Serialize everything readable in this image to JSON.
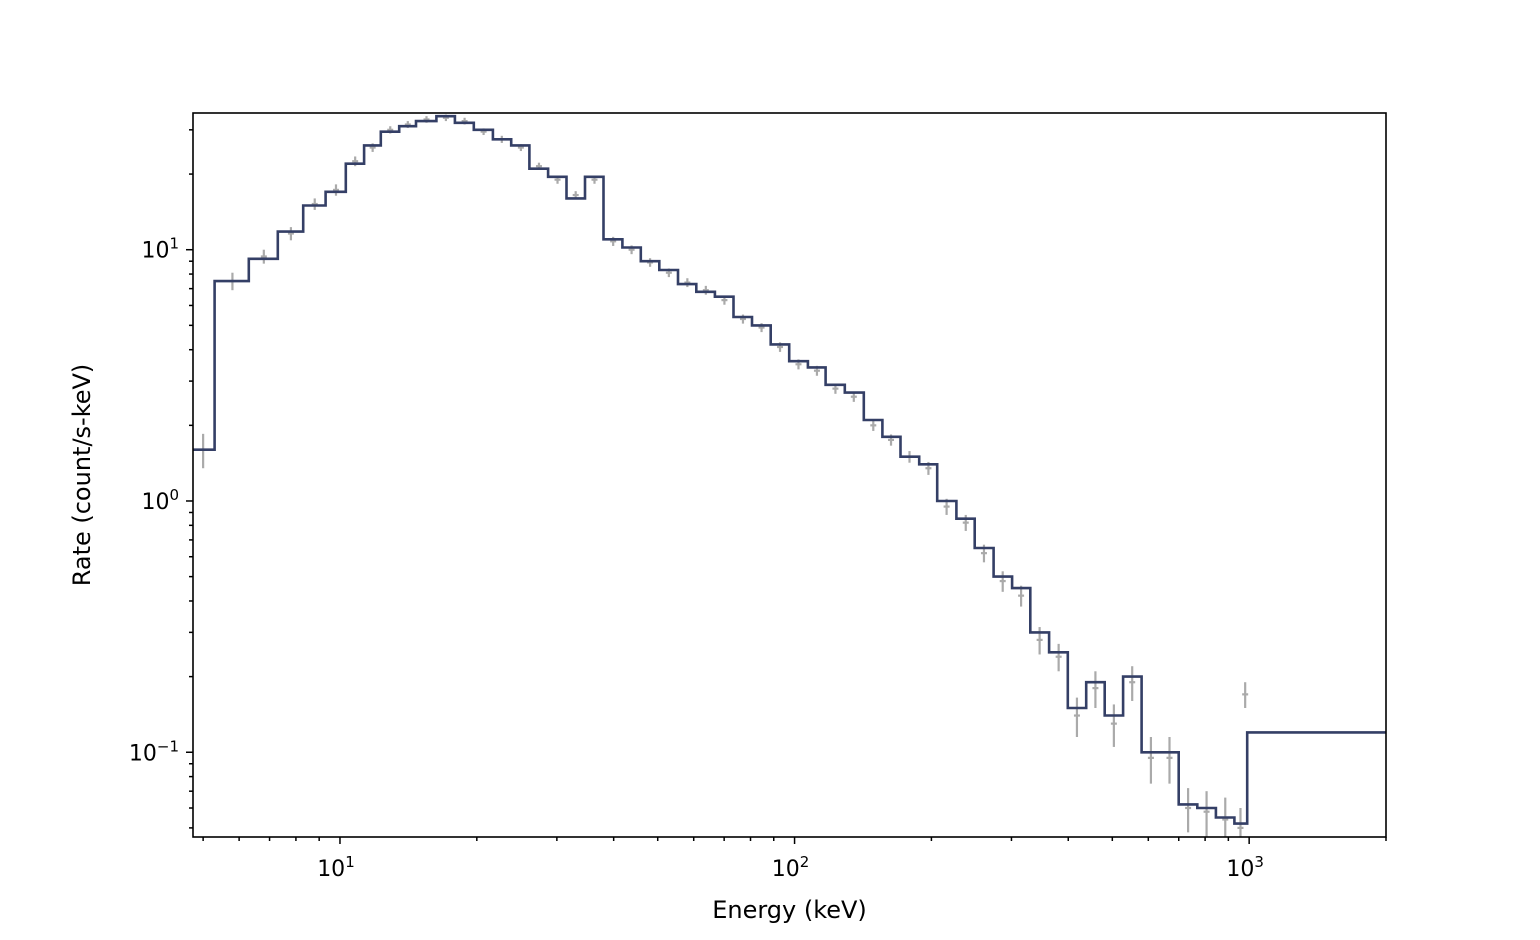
{
  "chart_data": {
    "type": "line",
    "title": "",
    "xlabel": "Energy (keV)",
    "ylabel": "Rate (count/s-keV)",
    "x_scale": "log",
    "y_scale": "log",
    "xlim": [
      4.75,
      2000
    ],
    "ylim": [
      0.046,
      35
    ],
    "grid": false,
    "legend": "none",
    "x_major_ticks": [
      {
        "value": 10,
        "mantissa": "10",
        "exp": "1"
      },
      {
        "value": 100,
        "mantissa": "10",
        "exp": "2"
      },
      {
        "value": 1000,
        "mantissa": "10",
        "exp": "3"
      }
    ],
    "y_major_ticks": [
      {
        "value": 0.1,
        "mantissa": "10",
        "exp": "−1"
      },
      {
        "value": 1,
        "mantissa": "10",
        "exp": "0"
      },
      {
        "value": 10,
        "mantissa": "10",
        "exp": "1"
      }
    ],
    "colors": {
      "model": "#343f66",
      "data": "#aaaaaa"
    },
    "series": [
      {
        "kind": "step-histogram",
        "edges": [
          4.75,
          5.3,
          6.3,
          7.3,
          8.3,
          9.3,
          10.3,
          11.3,
          12.3,
          13.5,
          14.7,
          16.3,
          17.9,
          19.7,
          21.7,
          23.8,
          26.1,
          28.7,
          31.5,
          34.6,
          38.0,
          41.8,
          45.9,
          50.4,
          55.4,
          60.8,
          66.8,
          73.4,
          80.6,
          88.6,
          97.3,
          107,
          117,
          129,
          142,
          156,
          171,
          188,
          206,
          227,
          249,
          274,
          301,
          330,
          363,
          399,
          438,
          481,
          528,
          580,
          637,
          700,
          769,
          845,
          928,
          990,
          2000
        ],
        "values": [
          1.6,
          7.5,
          9.2,
          11.8,
          15,
          17,
          22,
          26,
          29.5,
          31,
          32.5,
          34,
          32,
          30,
          27.5,
          26,
          21,
          19.5,
          16,
          19.5,
          11,
          10.2,
          9.0,
          8.3,
          7.3,
          6.8,
          6.5,
          5.4,
          5.0,
          4.2,
          3.6,
          3.4,
          2.9,
          2.7,
          2.1,
          1.8,
          1.5,
          1.4,
          1.0,
          0.85,
          0.65,
          0.5,
          0.45,
          0.3,
          0.25,
          0.15,
          0.19,
          0.14,
          0.2,
          0.1,
          0.1,
          0.062,
          0.06,
          0.055,
          0.052,
          0.12
        ]
      },
      {
        "kind": "data-points",
        "x": [
          5.0,
          5.8,
          6.8,
          7.8,
          8.8,
          9.8,
          10.8,
          11.8,
          12.9,
          14.1,
          15.5,
          17.1,
          18.8,
          20.7,
          22.7,
          25.0,
          27.4,
          30.1,
          33.0,
          36.3,
          39.9,
          43.8,
          48.1,
          52.9,
          58.1,
          63.8,
          70.1,
          77.0,
          84.6,
          92.9,
          102,
          112,
          123,
          135,
          149,
          163,
          179,
          197,
          216,
          238,
          261,
          287,
          315,
          346,
          381,
          418,
          459,
          504,
          553,
          608,
          668,
          734,
          806,
          886,
          957,
          980
        ],
        "y": [
          1.6,
          7.5,
          9.4,
          11.6,
          15.2,
          17.3,
          22.5,
          25.5,
          30,
          31.5,
          33,
          33.5,
          32.5,
          29.5,
          27.5,
          25.5,
          21.5,
          19,
          16.5,
          19,
          10.8,
          10,
          8.9,
          8.1,
          7.4,
          6.9,
          6.3,
          5.3,
          4.9,
          4.1,
          3.5,
          3.3,
          2.8,
          2.6,
          2.0,
          1.75,
          1.5,
          1.35,
          0.95,
          0.82,
          0.62,
          0.48,
          0.42,
          0.28,
          0.24,
          0.14,
          0.18,
          0.13,
          0.19,
          0.095,
          0.095,
          0.06,
          0.058,
          0.054,
          0.05,
          0.17
        ],
        "y_err": [
          0.25,
          0.6,
          0.6,
          0.7,
          0.8,
          0.9,
          1.0,
          1.0,
          1.0,
          1.0,
          1.0,
          1.0,
          1.0,
          0.9,
          0.9,
          0.8,
          0.7,
          0.7,
          0.6,
          0.7,
          0.45,
          0.4,
          0.35,
          0.32,
          0.3,
          0.28,
          0.26,
          0.22,
          0.2,
          0.18,
          0.16,
          0.15,
          0.13,
          0.12,
          0.1,
          0.09,
          0.08,
          0.08,
          0.07,
          0.06,
          0.05,
          0.045,
          0.04,
          0.035,
          0.03,
          0.025,
          0.03,
          0.025,
          0.03,
          0.02,
          0.02,
          0.012,
          0.012,
          0.012,
          0.01,
          0.02
        ]
      }
    ]
  }
}
